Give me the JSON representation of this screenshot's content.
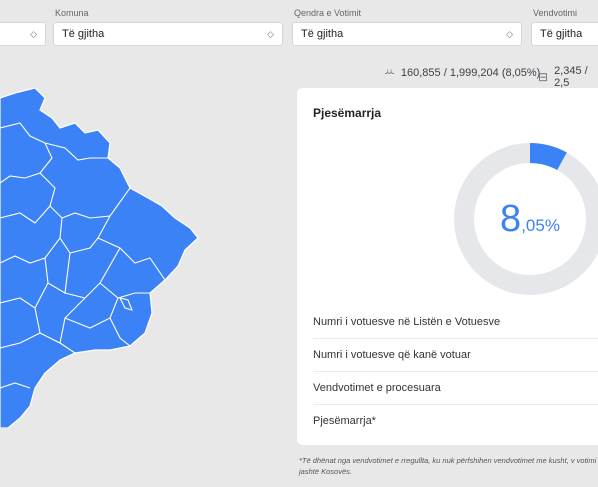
{
  "filters": {
    "komuna": {
      "label": "Komuna",
      "value": "Të gjitha"
    },
    "qendra": {
      "label": "Qendra e Votimit",
      "value": "Të gjitha"
    },
    "vendvotimi": {
      "label": "Vendvotimi",
      "value": "Të gjitha"
    }
  },
  "stats": {
    "voters": "160,855 / 1,999,204 (8,05%)",
    "stations": "2,345 / 2,5"
  },
  "card": {
    "title": "Pjesëmarrja",
    "turnout_int": "8",
    "turnout_dec": ",05%",
    "rows": [
      "Numri i votuesve në Listën e Votuesve",
      "Numri i votuesve që kanë votuar",
      "Vendvotimet e procesuara",
      "Pjesëmarrja*"
    ]
  },
  "turnout_fraction": 0.0805,
  "colors": {
    "accent": "#3b82f6",
    "track": "#e5e7eb",
    "map": "#3b82f6"
  },
  "footnote": "*Të dhënat nga vendvotimet e rregullta, ku nuk përfshihen vendvotimet me kusht, v votimi jashtë Kosovës."
}
